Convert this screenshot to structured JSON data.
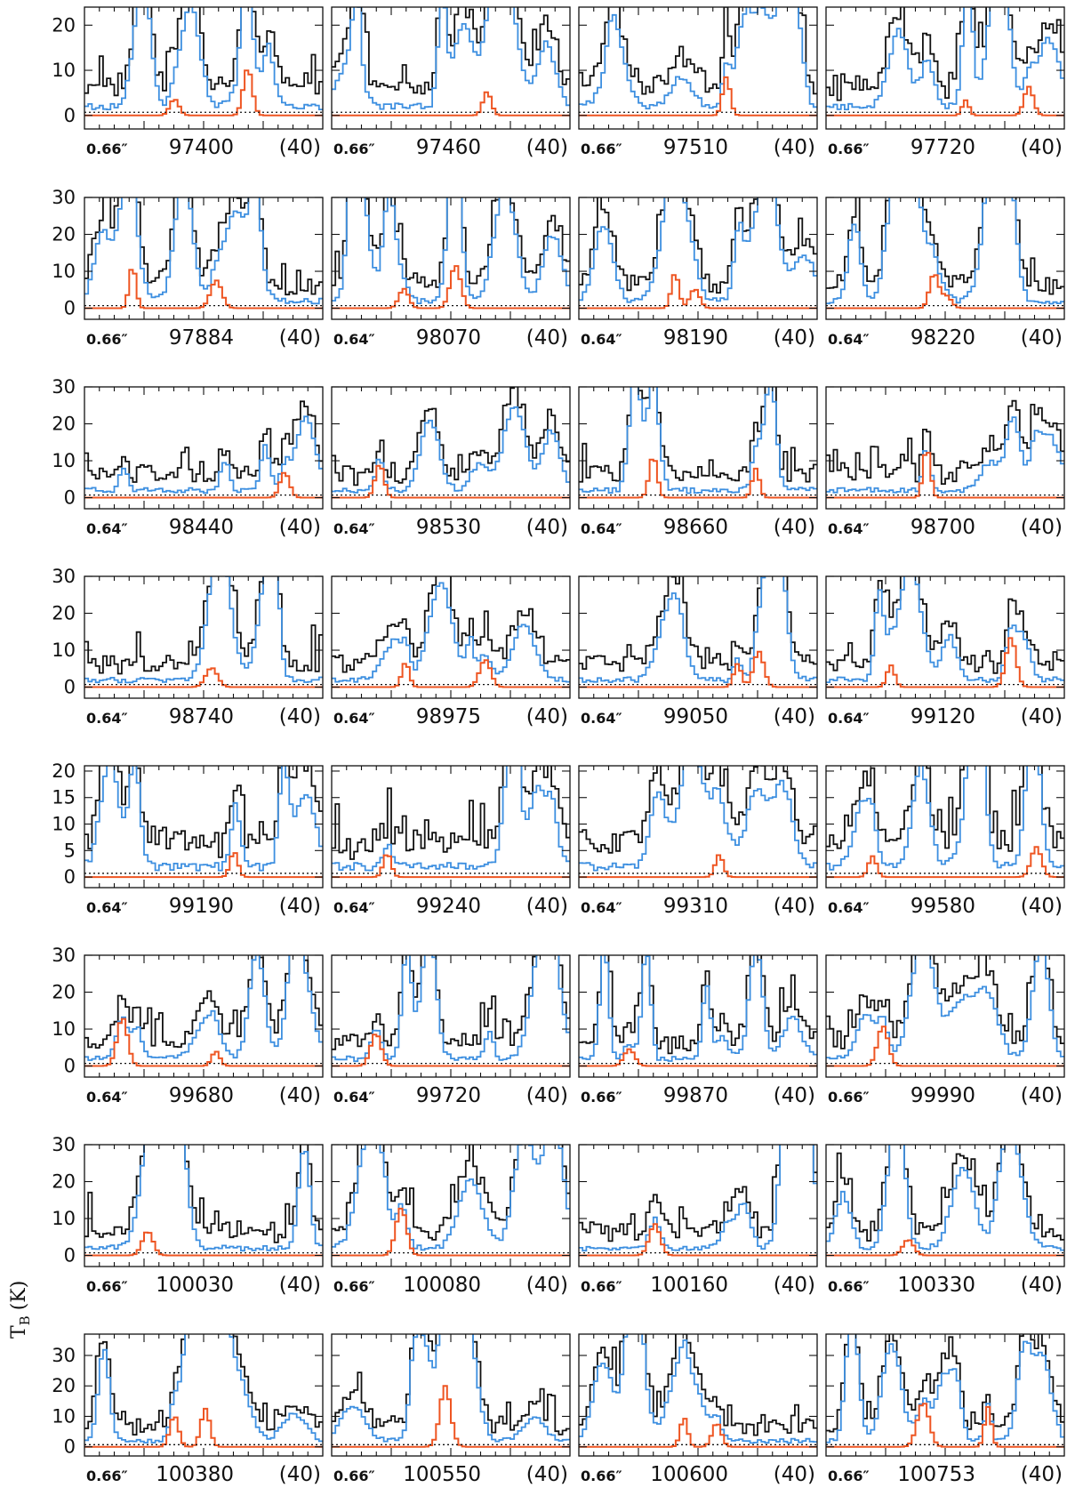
{
  "chart_data": {
    "type": "line",
    "layout": "grid 9 rows x 4 columns of small spectrum panels",
    "ylabel_main": "T",
    "ylabel_sub": "B",
    "ylabel_unit": "(K)",
    "line_style": "histogram",
    "colors": {
      "observed": "#111111",
      "model_total": "#3d8fe0",
      "model_species": "#ee5522",
      "noise": "#111111"
    },
    "noise_level": 0.7,
    "panels": [
      {
        "beam": "0.66″",
        "freq": "97400",
        "width": "(40)",
        "ylim": [
          -3,
          24
        ],
        "yticks": [
          0,
          10,
          20
        ]
      },
      {
        "beam": "0.66″",
        "freq": "97460",
        "width": "(40)",
        "ylim": [
          -3,
          24
        ],
        "yticks": [
          0,
          10,
          20
        ]
      },
      {
        "beam": "0.66″",
        "freq": "97510",
        "width": "(40)",
        "ylim": [
          -3,
          24
        ],
        "yticks": [
          0,
          10,
          20
        ]
      },
      {
        "beam": "0.66″",
        "freq": "97720",
        "width": "(40)",
        "ylim": [
          -3,
          24
        ],
        "yticks": [
          0,
          10,
          20
        ]
      },
      {
        "beam": "0.66″",
        "freq": "97884",
        "width": "(40)",
        "ylim": [
          -3,
          30
        ],
        "yticks": [
          0,
          10,
          20,
          30
        ]
      },
      {
        "beam": "0.64″",
        "freq": "98070",
        "width": "(40)",
        "ylim": [
          -3,
          30
        ],
        "yticks": [
          0,
          10,
          20,
          30
        ]
      },
      {
        "beam": "0.64″",
        "freq": "98190",
        "width": "(40)",
        "ylim": [
          -3,
          30
        ],
        "yticks": [
          0,
          10,
          20,
          30
        ]
      },
      {
        "beam": "0.64″",
        "freq": "98220",
        "width": "(40)",
        "ylim": [
          -3,
          30
        ],
        "yticks": [
          0,
          10,
          20,
          30
        ]
      },
      {
        "beam": "0.64″",
        "freq": "98440",
        "width": "(40)",
        "ylim": [
          -3,
          30
        ],
        "yticks": [
          0,
          10,
          20,
          30
        ]
      },
      {
        "beam": "0.64″",
        "freq": "98530",
        "width": "(40)",
        "ylim": [
          -3,
          30
        ],
        "yticks": [
          0,
          10,
          20,
          30
        ]
      },
      {
        "beam": "0.64″",
        "freq": "98660",
        "width": "(40)",
        "ylim": [
          -3,
          30
        ],
        "yticks": [
          0,
          10,
          20,
          30
        ]
      },
      {
        "beam": "0.64″",
        "freq": "98700",
        "width": "(40)",
        "ylim": [
          -3,
          30
        ],
        "yticks": [
          0,
          10,
          20,
          30
        ]
      },
      {
        "beam": "0.64″",
        "freq": "98740",
        "width": "(40)",
        "ylim": [
          -3,
          30
        ],
        "yticks": [
          0,
          10,
          20,
          30
        ]
      },
      {
        "beam": "0.64″",
        "freq": "98975",
        "width": "(40)",
        "ylim": [
          -3,
          30
        ],
        "yticks": [
          0,
          10,
          20,
          30
        ]
      },
      {
        "beam": "0.64″",
        "freq": "99050",
        "width": "(40)",
        "ylim": [
          -3,
          30
        ],
        "yticks": [
          0,
          10,
          20,
          30
        ]
      },
      {
        "beam": "0.64″",
        "freq": "99120",
        "width": "(40)",
        "ylim": [
          -3,
          30
        ],
        "yticks": [
          0,
          10,
          20,
          30
        ]
      },
      {
        "beam": "0.64″",
        "freq": "99190",
        "width": "(40)",
        "ylim": [
          -2,
          21
        ],
        "yticks": [
          0,
          5,
          10,
          15,
          20
        ]
      },
      {
        "beam": "0.64″",
        "freq": "99240",
        "width": "(40)",
        "ylim": [
          -2,
          21
        ],
        "yticks": [
          0,
          5,
          10,
          15,
          20
        ]
      },
      {
        "beam": "0.64″",
        "freq": "99310",
        "width": "(40)",
        "ylim": [
          -2,
          21
        ],
        "yticks": [
          0,
          5,
          10,
          15,
          20
        ]
      },
      {
        "beam": "0.64″",
        "freq": "99580",
        "width": "(40)",
        "ylim": [
          -2,
          21
        ],
        "yticks": [
          0,
          5,
          10,
          15,
          20
        ]
      },
      {
        "beam": "0.64″",
        "freq": "99680",
        "width": "(40)",
        "ylim": [
          -3,
          30
        ],
        "yticks": [
          0,
          10,
          20,
          30
        ]
      },
      {
        "beam": "0.64″",
        "freq": "99720",
        "width": "(40)",
        "ylim": [
          -3,
          30
        ],
        "yticks": [
          0,
          10,
          20,
          30
        ]
      },
      {
        "beam": "0.66″",
        "freq": "99870",
        "width": "(40)",
        "ylim": [
          -3,
          30
        ],
        "yticks": [
          0,
          10,
          20,
          30
        ]
      },
      {
        "beam": "0.66″",
        "freq": "99990",
        "width": "(40)",
        "ylim": [
          -3,
          30
        ],
        "yticks": [
          0,
          10,
          20,
          30
        ]
      },
      {
        "beam": "0.66″",
        "freq": "100030",
        "width": "(40)",
        "ylim": [
          -3,
          30
        ],
        "yticks": [
          0,
          10,
          20,
          30
        ]
      },
      {
        "beam": "0.66″",
        "freq": "100080",
        "width": "(40)",
        "ylim": [
          -3,
          30
        ],
        "yticks": [
          0,
          10,
          20,
          30
        ]
      },
      {
        "beam": "0.66″",
        "freq": "100160",
        "width": "(40)",
        "ylim": [
          -3,
          30
        ],
        "yticks": [
          0,
          10,
          20,
          30
        ]
      },
      {
        "beam": "0.66″",
        "freq": "100330",
        "width": "(40)",
        "ylim": [
          -3,
          30
        ],
        "yticks": [
          0,
          10,
          20,
          30
        ]
      },
      {
        "beam": "0.66″",
        "freq": "100380",
        "width": "(40)",
        "ylim": [
          -3,
          37
        ],
        "yticks": [
          0,
          10,
          20,
          30
        ]
      },
      {
        "beam": "0.66″",
        "freq": "100550",
        "width": "(40)",
        "ylim": [
          -3,
          37
        ],
        "yticks": [
          0,
          10,
          20,
          30
        ]
      },
      {
        "beam": "0.66″",
        "freq": "100600",
        "width": "(40)",
        "ylim": [
          -3,
          37
        ],
        "yticks": [
          0,
          10,
          20,
          30
        ]
      },
      {
        "beam": "0.66″",
        "freq": "100753",
        "width": "(40)",
        "ylim": [
          -3,
          37
        ],
        "yticks": [
          0,
          10,
          20,
          30
        ]
      }
    ]
  }
}
